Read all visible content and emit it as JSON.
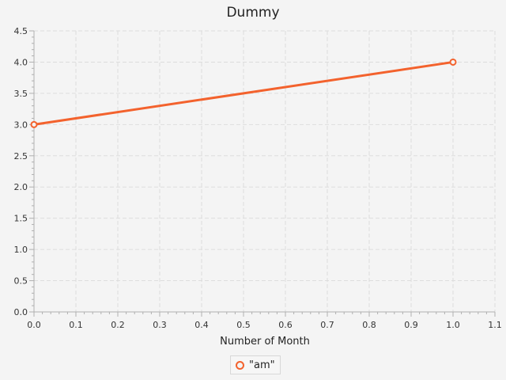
{
  "chart_data": {
    "type": "line",
    "title": "Dummy",
    "xlabel": "Number of Month",
    "ylabel": "",
    "xlim": [
      0.0,
      1.1
    ],
    "ylim": [
      0.0,
      4.5
    ],
    "xticks": [
      "0.0",
      "0.1",
      "0.2",
      "0.3",
      "0.4",
      "0.5",
      "0.6",
      "0.7",
      "0.8",
      "0.9",
      "1.0",
      "1.1"
    ],
    "yticks": [
      "0.0",
      "0.5",
      "1.0",
      "1.5",
      "2.0",
      "2.5",
      "3.0",
      "3.5",
      "4.0",
      "4.5"
    ],
    "grid": true,
    "legend_position": "bottom-center",
    "series": [
      {
        "name": "\"am\"",
        "color": "#f3622d",
        "x": [
          0.0,
          1.0
        ],
        "y": [
          3.0,
          4.0
        ]
      }
    ]
  }
}
